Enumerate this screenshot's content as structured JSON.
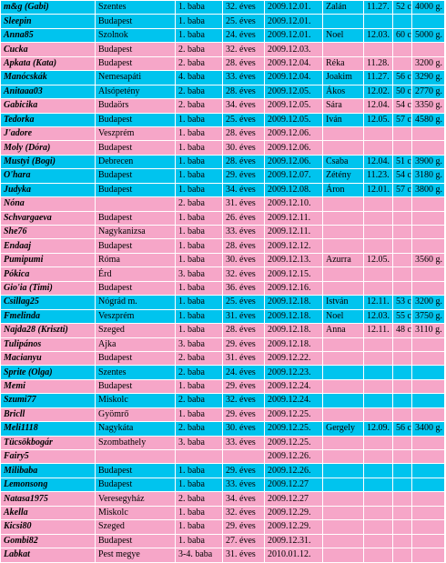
{
  "colors": {
    "cyan_row": "#00c4ee",
    "pink_row": "#f6a6c8"
  },
  "rows": [
    {
      "color": "cyan",
      "nick": "m&g (Gabi)",
      "city": "Szentes",
      "baby": "1. baba",
      "week": "32. éves",
      "date": "2009.12.01.",
      "name": "Zalán",
      "bdate": "11.27.",
      "len": "52 cm.",
      "wt": "4000 g."
    },
    {
      "color": "cyan",
      "nick": "Sleepin",
      "city": "Budapest",
      "baby": "1. baba",
      "week": "25. éves",
      "date": "2009.12.01.",
      "name": "",
      "bdate": "",
      "len": "",
      "wt": ""
    },
    {
      "color": "cyan",
      "nick": "Anna85",
      "city": "Szolnok",
      "baby": "1. baba",
      "week": "24. éves",
      "date": "2009.12.01.",
      "name": "Noel",
      "bdate": "12.03.",
      "len": "60 cm.",
      "wt": "5000 g."
    },
    {
      "color": "pink",
      "nick": "Cucka",
      "city": "Budapest",
      "baby": "2. baba",
      "week": "32. éves",
      "date": "2009.12.03.",
      "name": "",
      "bdate": "",
      "len": "",
      "wt": ""
    },
    {
      "color": "pink",
      "nick": "Apkata (Kata)",
      "city": "Budapest",
      "baby": "2. baba",
      "week": "28. éves",
      "date": "2009.12.04.",
      "name": "Réka",
      "bdate": "11.28.",
      "len": "",
      "wt": "3200 g."
    },
    {
      "color": "cyan",
      "nick": "Manócskák",
      "city": "Nemesapáti",
      "baby": "4. baba",
      "week": "33. éves",
      "date": "2009.12.04.",
      "name": "Joakim",
      "bdate": "11.27.",
      "len": "56 cm.",
      "wt": "3290 g."
    },
    {
      "color": "cyan",
      "nick": "Anitaaa03",
      "city": "Alsópetény",
      "baby": "2. baba",
      "week": "28. éves",
      "date": "2009.12.05.",
      "name": "Ákos",
      "bdate": "12.02.",
      "len": "50 cm.",
      "wt": "2770 g."
    },
    {
      "color": "pink",
      "nick": "Gabicika",
      "city": "Budaörs",
      "baby": "2. baba",
      "week": "34. éves",
      "date": "2009.12.05.",
      "name": "Sára",
      "bdate": "12.04.",
      "len": "54 cm.",
      "wt": "3350 g."
    },
    {
      "color": "cyan",
      "nick": "Tedorka",
      "city": "Budapest",
      "baby": "1. baba",
      "week": "25. éves",
      "date": "2009.12.05.",
      "name": "Iván",
      "bdate": "12.05.",
      "len": "57 cm.",
      "wt": "4580 g."
    },
    {
      "color": "pink",
      "nick": "J'adore",
      "city": "Veszprém",
      "baby": "1. baba",
      "week": "28. éves",
      "date": "2009.12.06.",
      "name": "",
      "bdate": "",
      "len": "",
      "wt": ""
    },
    {
      "color": "pink",
      "nick": "Moly (Dóra)",
      "city": "Budapest",
      "baby": "1. baba",
      "week": "30. éves",
      "date": "2009.12.06.",
      "name": "",
      "bdate": "",
      "len": "",
      "wt": ""
    },
    {
      "color": "cyan",
      "nick": "Mustyi (Bogi)",
      "city": "Debrecen",
      "baby": "1. baba",
      "week": "28. éves",
      "date": "2009.12.06.",
      "name": "Csaba",
      "bdate": "12.04.",
      "len": "51 cm.",
      "wt": "3900 g."
    },
    {
      "color": "cyan",
      "nick": "O'hara",
      "city": "Budapest",
      "baby": "1. baba",
      "week": "29. éves",
      "date": "2009.12.07.",
      "name": "Zétény",
      "bdate": "11.23.",
      "len": "54 cm.",
      "wt": "3180 g."
    },
    {
      "color": "cyan",
      "nick": "Judyka",
      "city": "Budapest",
      "baby": "1. baba",
      "week": "34. éves",
      "date": "2009.12.08.",
      "name": "Áron",
      "bdate": "12.01.",
      "len": "57 cm.",
      "wt": "3800 g."
    },
    {
      "color": "pink",
      "nick": "Nóna",
      "city": "",
      "baby": "2. baba",
      "week": "31. éves",
      "date": "2009.12.10.",
      "name": "",
      "bdate": "",
      "len": "",
      "wt": ""
    },
    {
      "color": "pink",
      "nick": "Schvargaeva",
      "city": "Budapest",
      "baby": "1. baba",
      "week": "26. éves",
      "date": "2009.12.11.",
      "name": "",
      "bdate": "",
      "len": "",
      "wt": ""
    },
    {
      "color": "pink",
      "nick": "She76",
      "city": "Nagykanizsa",
      "baby": "1. baba",
      "week": "33. éves",
      "date": "2009.12.11.",
      "name": "",
      "bdate": "",
      "len": "",
      "wt": ""
    },
    {
      "color": "pink",
      "nick": "Endaaj",
      "city": "Budapest",
      "baby": "1. baba",
      "week": "28. éves",
      "date": "2009.12.12.",
      "name": "",
      "bdate": "",
      "len": "",
      "wt": ""
    },
    {
      "color": "pink",
      "nick": "Pumipumi",
      "city": "Róma",
      "baby": "1. baba",
      "week": "30. éves",
      "date": "2009.12.13.",
      "name": "Azurra",
      "bdate": "12.05.",
      "len": "",
      "wt": "3560 g."
    },
    {
      "color": "pink",
      "nick": "Pókica",
      "city": "Érd",
      "baby": "3. baba",
      "week": "32. éves",
      "date": "2009.12.15.",
      "name": "",
      "bdate": "",
      "len": "",
      "wt": ""
    },
    {
      "color": "pink",
      "nick": "Gio'ia (Timi)",
      "city": "Budapest",
      "baby": "1. baba",
      "week": "36. éves",
      "date": "2009.12.16.",
      "name": "",
      "bdate": "",
      "len": "",
      "wt": ""
    },
    {
      "color": "cyan",
      "nick": "Csillag25",
      "city": "Nógrád m.",
      "baby": "1. baba",
      "week": "25. éves",
      "date": "2009.12.18.",
      "name": "István",
      "bdate": "12.11.",
      "len": "53 cm.",
      "wt": "3200 g."
    },
    {
      "color": "cyan",
      "nick": "Fmelinda",
      "city": "Veszprém",
      "baby": "1. baba",
      "week": "31. éves",
      "date": "2009.12.18.",
      "name": "Noel",
      "bdate": "12.03.",
      "len": "55 cm.",
      "wt": "3750 g."
    },
    {
      "color": "pink",
      "nick": "Najda28 (Kriszti)",
      "city": "Szeged",
      "baby": "1. baba",
      "week": "28. éves",
      "date": "2009.12.18.",
      "name": "Anna",
      "bdate": "12.11.",
      "len": "48 cm.",
      "wt": "3110 g."
    },
    {
      "color": "pink",
      "nick": "Tulipános",
      "city": "Ajka",
      "baby": "3. baba",
      "week": "29. éves",
      "date": "2009.12.18.",
      "name": "",
      "bdate": "",
      "len": "",
      "wt": ""
    },
    {
      "color": "pink",
      "nick": "Macianyu",
      "city": "Budapest",
      "baby": "2. baba",
      "week": "31. éves",
      "date": "2009.12.22.",
      "name": "",
      "bdate": "",
      "len": "",
      "wt": ""
    },
    {
      "color": "cyan",
      "nick": "Sprite (Olga)",
      "city": "Szentes",
      "baby": "2. baba",
      "week": "24. éves",
      "date": "2009.12.23.",
      "name": "",
      "bdate": "",
      "len": "",
      "wt": ""
    },
    {
      "color": "pink",
      "nick": "Memi",
      "city": "Budapest",
      "baby": "1. baba",
      "week": "29. éves",
      "date": "2009.12.24.",
      "name": "",
      "bdate": "",
      "len": "",
      "wt": ""
    },
    {
      "color": "cyan",
      "nick": "Szumi77",
      "city": "Miskolc",
      "baby": "2. baba",
      "week": "32. éves",
      "date": "2009.12.24.",
      "name": "",
      "bdate": "",
      "len": "",
      "wt": ""
    },
    {
      "color": "pink",
      "nick": "Bricll",
      "city": "Gyömrő",
      "baby": "1. baba",
      "week": "29. éves",
      "date": "2009.12.25.",
      "name": "",
      "bdate": "",
      "len": "",
      "wt": ""
    },
    {
      "color": "cyan",
      "nick": "Meli1118",
      "city": "Nagykáta",
      "baby": "2. baba",
      "week": "30. éves",
      "date": "2009.12.25.",
      "name": "Gergely",
      "bdate": "12.09.",
      "len": "56 cm.",
      "wt": "3400 g."
    },
    {
      "color": "pink",
      "nick": "Tücsökbogár",
      "city": "Szombathely",
      "baby": "3. baba",
      "week": "33. éves",
      "date": "2009.12.25.",
      "name": "",
      "bdate": "",
      "len": "",
      "wt": ""
    },
    {
      "color": "pink",
      "nick": "Fairy5",
      "city": "",
      "baby": "",
      "week": "",
      "date": "2009.12.26.",
      "name": "",
      "bdate": "",
      "len": "",
      "wt": ""
    },
    {
      "color": "cyan",
      "nick": "Milibaba",
      "city": "Budapest",
      "baby": "1. baba",
      "week": "29. éves",
      "date": "2009.12.26.",
      "name": "",
      "bdate": "",
      "len": "",
      "wt": ""
    },
    {
      "color": "cyan",
      "nick": "Lemonsong",
      "city": "Budapest",
      "baby": "1. baba",
      "week": "33. éves",
      "date": "2009.12.27",
      "name": "",
      "bdate": "",
      "len": "",
      "wt": ""
    },
    {
      "color": "pink",
      "nick": "Natasa1975",
      "city": "Veresegyház",
      "baby": "2. baba",
      "week": "34. éves",
      "date": "2009.12.27",
      "name": "",
      "bdate": "",
      "len": "",
      "wt": ""
    },
    {
      "color": "pink",
      "nick": "Akella",
      "city": "Miskolc",
      "baby": "1. baba",
      "week": "32. éves",
      "date": "2009.12.29.",
      "name": "",
      "bdate": "",
      "len": "",
      "wt": ""
    },
    {
      "color": "pink",
      "nick": "Kicsi80",
      "city": "Szeged",
      "baby": "1. baba",
      "week": "29. éves",
      "date": "2009.12.29.",
      "name": "",
      "bdate": "",
      "len": "",
      "wt": ""
    },
    {
      "color": "pink",
      "nick": "Gombi82",
      "city": "Budapest",
      "baby": "1. baba",
      "week": "27. éves",
      "date": "2009.12.31.",
      "name": "",
      "bdate": "",
      "len": "",
      "wt": ""
    },
    {
      "color": "pink",
      "nick": "Labkat",
      "city": "Pest megye",
      "baby": "3-4. baba",
      "week": "31. éves",
      "date": "2010.01.12.",
      "name": "",
      "bdate": "",
      "len": "",
      "wt": ""
    }
  ]
}
